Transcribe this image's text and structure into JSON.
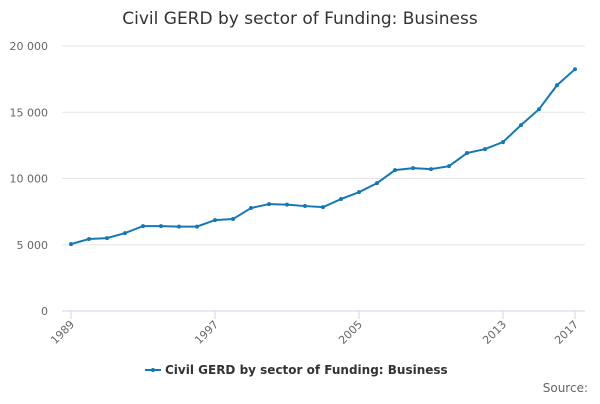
{
  "chart_data": {
    "type": "line",
    "title": "Civil GERD by sector of Funding: Business",
    "x": [
      1989,
      1990,
      1991,
      1992,
      1993,
      1994,
      1995,
      1996,
      1997,
      1998,
      1999,
      2000,
      2001,
      2002,
      2003,
      2004,
      2005,
      2006,
      2007,
      2008,
      2009,
      2010,
      2011,
      2012,
      2013,
      2014,
      2015,
      2016,
      2017
    ],
    "series": [
      {
        "name": "Civil GERD by sector of Funding: Business",
        "color": "#1578b4",
        "values": [
          5050,
          5430,
          5500,
          5880,
          6410,
          6410,
          6370,
          6370,
          6860,
          6940,
          7770,
          8070,
          8030,
          7920,
          7840,
          8450,
          8970,
          9650,
          10630,
          10780,
          10710,
          10930,
          11920,
          12220,
          12750,
          14030,
          15230,
          17040,
          18250
        ]
      }
    ],
    "xlim": [
      1989,
      2017
    ],
    "xticks": [
      1989,
      1997,
      2005,
      2013,
      2017
    ],
    "ylim": [
      0,
      20000
    ],
    "yticks": [
      0,
      {
        "value": 5000,
        "label": "5 000"
      },
      {
        "value": 10000,
        "label": "10 000"
      },
      {
        "value": 15000,
        "label": "15 000"
      },
      {
        "value": 20000,
        "label": "20 000"
      }
    ],
    "grid": true,
    "legend": "bottom",
    "source": "Source:"
  }
}
